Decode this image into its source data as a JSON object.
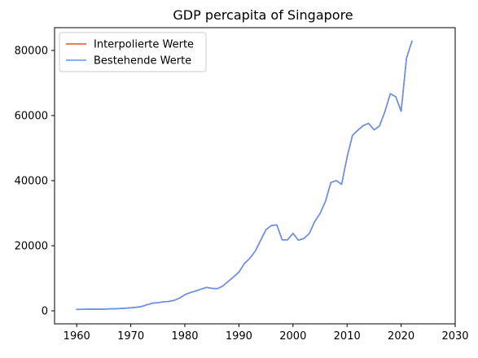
{
  "chart_data": {
    "type": "line",
    "title": "GDP percapita of Singapore",
    "xlabel": "",
    "ylabel": "",
    "xlim": [
      1955.9,
      2030
    ],
    "ylim": [
      -4000,
      87000
    ],
    "xticks": [
      1960,
      1970,
      1980,
      1990,
      2000,
      2010,
      2020,
      2030
    ],
    "yticks": [
      0,
      20000,
      40000,
      60000,
      80000
    ],
    "grid": false,
    "legend_position": "top-left",
    "series": [
      {
        "name": "Interpolierte Werte",
        "color": "#e8501e",
        "x": [
          1960,
          1961,
          1962,
          1963,
          1964,
          1965,
          1966,
          1967,
          1968,
          1969,
          1970,
          1971,
          1972,
          1973,
          1974,
          1975,
          1976,
          1977,
          1978,
          1979,
          1980,
          1981,
          1982,
          1983,
          1984,
          1985,
          1986,
          1987,
          1988,
          1989,
          1990,
          1991,
          1992,
          1993,
          1994,
          1995,
          1996,
          1997,
          1998,
          1999,
          2000,
          2001,
          2002,
          2003,
          2004,
          2005,
          2006,
          2007,
          2008,
          2009,
          2010,
          2011,
          2012,
          2013,
          2014,
          2015,
          2016,
          2017,
          2018,
          2019,
          2020,
          2021,
          2022
        ],
        "y": [
          430,
          450,
          480,
          510,
          490,
          520,
          570,
          620,
          700,
          800,
          930,
          1080,
          1330,
          1860,
          2350,
          2500,
          2750,
          2870,
          3200,
          3900,
          4930,
          5600,
          6100,
          6650,
          7200,
          6900,
          6800,
          7600,
          9000,
          10400,
          11900,
          14500,
          16100,
          18300,
          21600,
          24900,
          26200,
          26400,
          21800,
          21800,
          23800,
          21700,
          22200,
          23700,
          27400,
          29900,
          33600,
          39400,
          40000,
          38900,
          47200,
          53900,
          55500,
          56900,
          57600,
          55600,
          56800,
          61200,
          66700,
          65800,
          61300,
          77700,
          82800
        ]
      },
      {
        "name": "Bestehende Werte",
        "color": "#6495ed",
        "x": [
          1960,
          1961,
          1962,
          1963,
          1964,
          1965,
          1966,
          1967,
          1968,
          1969,
          1970,
          1971,
          1972,
          1973,
          1974,
          1975,
          1976,
          1977,
          1978,
          1979,
          1980,
          1981,
          1982,
          1983,
          1984,
          1985,
          1986,
          1987,
          1988,
          1989,
          1990,
          1991,
          1992,
          1993,
          1994,
          1995,
          1996,
          1997,
          1998,
          1999,
          2000,
          2001,
          2002,
          2003,
          2004,
          2005,
          2006,
          2007,
          2008,
          2009,
          2010,
          2011,
          2012,
          2013,
          2014,
          2015,
          2016,
          2017,
          2018,
          2019,
          2020,
          2021,
          2022
        ],
        "y": [
          430,
          450,
          480,
          510,
          490,
          520,
          570,
          620,
          700,
          800,
          930,
          1080,
          1330,
          1860,
          2350,
          2500,
          2750,
          2870,
          3200,
          3900,
          4930,
          5600,
          6100,
          6650,
          7200,
          6900,
          6800,
          7600,
          9000,
          10400,
          11900,
          14500,
          16100,
          18300,
          21600,
          24900,
          26200,
          26400,
          21800,
          21800,
          23800,
          21700,
          22200,
          23700,
          27400,
          29900,
          33600,
          39400,
          40000,
          38900,
          47200,
          53900,
          55500,
          56900,
          57600,
          55600,
          56800,
          61200,
          66700,
          65800,
          61300,
          77700,
          82800
        ]
      }
    ]
  }
}
